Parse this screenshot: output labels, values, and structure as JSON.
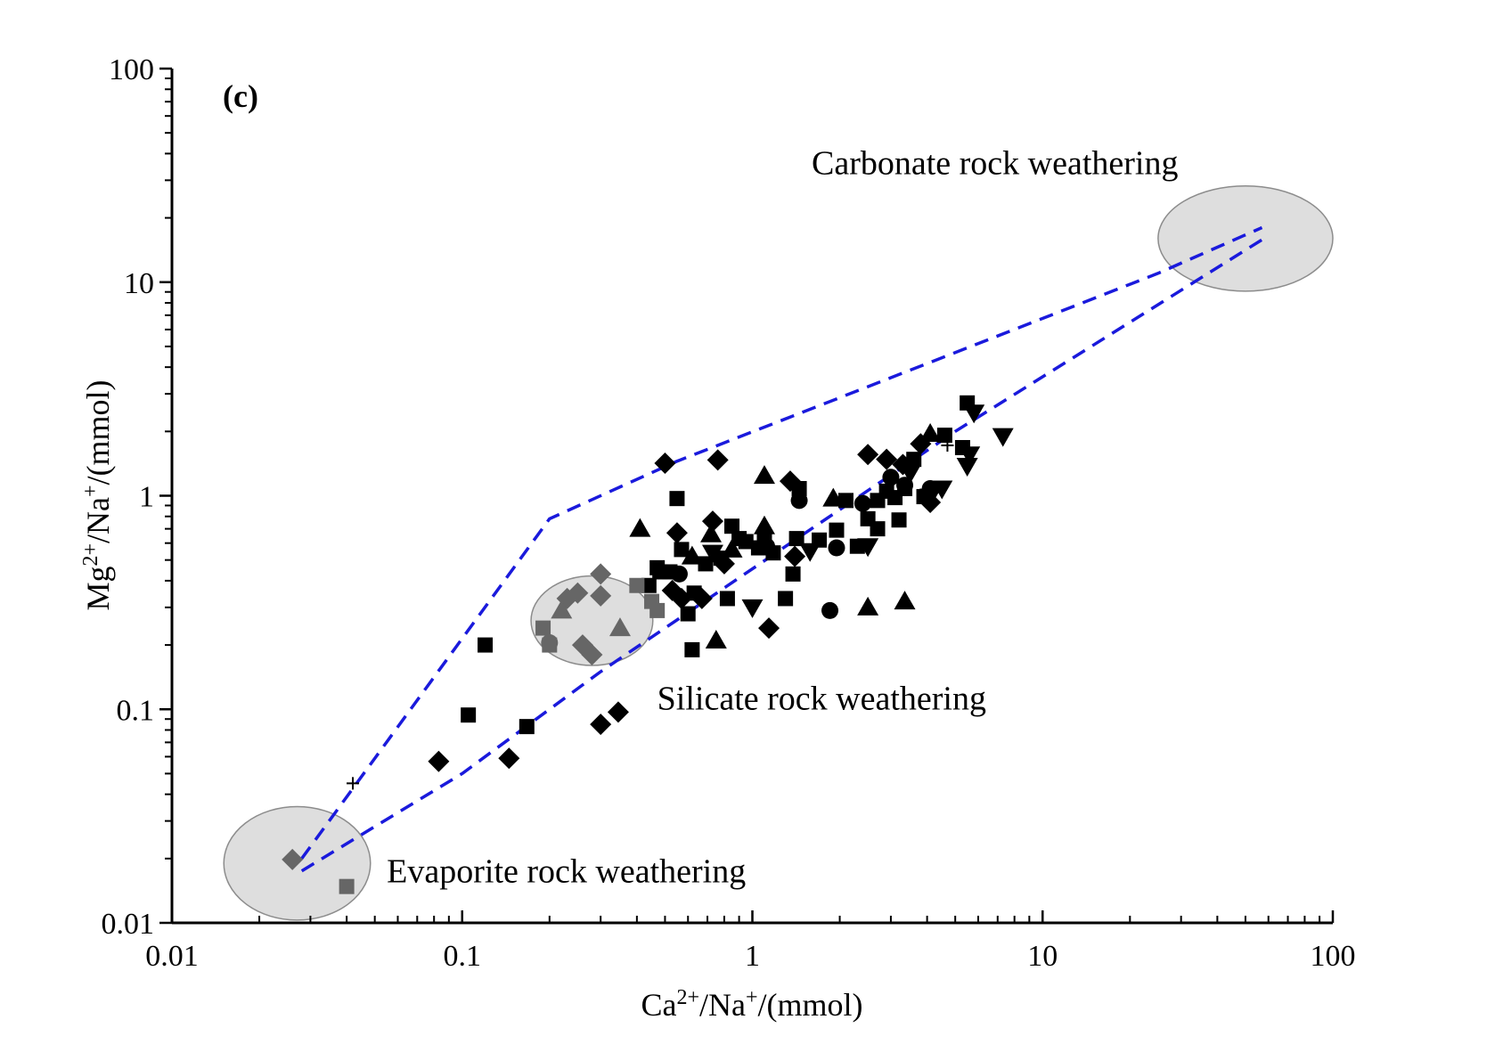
{
  "chart_data": {
    "type": "scatter",
    "panel_label": "(c)",
    "xlabel": {
      "base": "Ca",
      "sup1": "2+",
      "mid": "/Na",
      "sup2": "+",
      "tail": "/(mmol)"
    },
    "ylabel": {
      "base": "Mg",
      "sup1": "2+",
      "mid": "/Na",
      "sup2": "+",
      "tail": "/(mmol)"
    },
    "x_scale": "log",
    "y_scale": "log",
    "xlim": [
      0.01,
      100
    ],
    "ylim": [
      0.01,
      100
    ],
    "grid": false,
    "x_ticks": [
      {
        "value": 0.01,
        "label": "0.01"
      },
      {
        "value": 0.1,
        "label": "0.1"
      },
      {
        "value": 1,
        "label": "1"
      },
      {
        "value": 10,
        "label": "10"
      },
      {
        "value": 100,
        "label": "100"
      }
    ],
    "y_ticks": [
      {
        "value": 0.01,
        "label": "0.01"
      },
      {
        "value": 0.1,
        "label": "0.1"
      },
      {
        "value": 1,
        "label": "1"
      },
      {
        "value": 10,
        "label": "10"
      },
      {
        "value": 100,
        "label": "100"
      }
    ],
    "colors": {
      "points": "#000000",
      "endmember_points": "#666666",
      "boundary": "#1a1adc",
      "region_fill": "#dedede",
      "region_stroke": "#8c8c8c"
    },
    "regions": [
      {
        "label": "Carbonate rock weathering",
        "center": [
          50,
          16
        ],
        "x_range": [
          25,
          100
        ],
        "y_range": [
          9,
          28
        ],
        "label_at": [
          1.6,
          32
        ]
      },
      {
        "label": "Silicate rock weathering",
        "center": [
          0.28,
          0.26
        ],
        "x_range": [
          0.175,
          0.46
        ],
        "y_range": [
          0.16,
          0.42
        ],
        "label_at": [
          0.47,
          0.1
        ]
      },
      {
        "label": "Evaporite rock weathering",
        "center": [
          0.027,
          0.019
        ],
        "x_range": [
          0.015,
          0.048
        ],
        "y_range": [
          0.01,
          0.034
        ],
        "label_at": [
          0.055,
          0.0155
        ]
      }
    ],
    "boundary_lines": [
      {
        "points": [
          [
            0.028,
            0.02
          ],
          [
            0.2,
            0.78
          ],
          [
            0.55,
            1.45
          ],
          [
            25,
            11
          ],
          [
            57,
            18
          ]
        ]
      },
      {
        "points": [
          [
            0.028,
            0.0175
          ],
          [
            0.1,
            0.05
          ],
          [
            0.3,
            0.15
          ],
          [
            5,
            2
          ],
          [
            60,
            16.5
          ]
        ]
      }
    ],
    "series": [
      {
        "marker": "square",
        "points": [
          [
            0.12,
            0.2
          ],
          [
            0.105,
            0.094
          ],
          [
            0.167,
            0.083
          ],
          [
            0.55,
            0.97
          ],
          [
            0.44,
            0.38
          ],
          [
            0.48,
            0.44
          ],
          [
            0.47,
            0.46
          ],
          [
            0.52,
            0.44
          ],
          [
            0.57,
            0.56
          ],
          [
            0.6,
            0.28
          ],
          [
            0.62,
            0.19
          ],
          [
            0.63,
            0.35
          ],
          [
            0.69,
            0.48
          ],
          [
            0.78,
            0.51
          ],
          [
            0.82,
            0.33
          ],
          [
            0.85,
            0.72
          ],
          [
            0.9,
            0.63
          ],
          [
            0.95,
            0.61
          ],
          [
            1.05,
            0.57
          ],
          [
            1.1,
            0.62
          ],
          [
            1.18,
            0.54
          ],
          [
            1.3,
            0.33
          ],
          [
            1.38,
            0.43
          ],
          [
            1.42,
            0.63
          ],
          [
            1.45,
            1.08
          ],
          [
            1.7,
            0.62
          ],
          [
            1.95,
            0.69
          ],
          [
            2.1,
            0.95
          ],
          [
            2.3,
            0.58
          ],
          [
            2.5,
            0.78
          ],
          [
            2.7,
            0.95
          ],
          [
            2.7,
            0.7
          ],
          [
            2.9,
            1.05
          ],
          [
            3.1,
            0.98
          ],
          [
            3.2,
            0.77
          ],
          [
            3.35,
            1.08
          ],
          [
            3.6,
            1.48
          ],
          [
            3.9,
            0.99
          ],
          [
            4.6,
            1.92
          ],
          [
            5.5,
            2.72
          ],
          [
            5.3,
            1.68
          ]
        ]
      },
      {
        "marker": "circle",
        "points": [
          [
            0.56,
            0.43
          ],
          [
            1.12,
            0.58
          ],
          [
            1.45,
            0.95
          ],
          [
            1.85,
            0.29
          ],
          [
            1.95,
            0.57
          ],
          [
            2.4,
            0.92
          ],
          [
            3.0,
            1.22
          ],
          [
            3.35,
            1.12
          ],
          [
            4.1,
            1.08
          ]
        ]
      },
      {
        "marker": "triangle-up",
        "points": [
          [
            0.41,
            0.7
          ],
          [
            0.62,
            0.52
          ],
          [
            0.72,
            0.66
          ],
          [
            0.75,
            0.21
          ],
          [
            0.85,
            0.56
          ],
          [
            1.1,
            1.24
          ],
          [
            1.1,
            0.72
          ],
          [
            1.9,
            0.97
          ],
          [
            2.5,
            0.3
          ],
          [
            3.35,
            0.32
          ],
          [
            4.1,
            1.95
          ]
        ]
      },
      {
        "marker": "triangle-down",
        "points": [
          [
            0.73,
            0.54
          ],
          [
            1.0,
            0.3
          ],
          [
            1.58,
            0.55
          ],
          [
            2.5,
            0.58
          ],
          [
            3.5,
            1.28
          ],
          [
            4.1,
            0.99
          ],
          [
            4.5,
            1.08
          ],
          [
            5.5,
            1.38
          ],
          [
            5.8,
            2.45
          ],
          [
            5.6,
            1.56
          ],
          [
            7.3,
            1.9
          ]
        ]
      },
      {
        "marker": "diamond",
        "points": [
          [
            0.083,
            0.057
          ],
          [
            0.145,
            0.059
          ],
          [
            0.3,
            0.085
          ],
          [
            0.345,
            0.097
          ],
          [
            0.5,
            1.42
          ],
          [
            0.55,
            0.67
          ],
          [
            0.53,
            0.36
          ],
          [
            0.57,
            0.33
          ],
          [
            0.67,
            0.33
          ],
          [
            0.73,
            0.76
          ],
          [
            0.76,
            1.47
          ],
          [
            0.8,
            0.48
          ],
          [
            1.14,
            0.24
          ],
          [
            1.35,
            1.17
          ],
          [
            1.4,
            0.52
          ],
          [
            2.5,
            1.56
          ],
          [
            2.9,
            1.48
          ],
          [
            3.3,
            1.4
          ],
          [
            3.8,
            1.75
          ],
          [
            4.1,
            0.93
          ]
        ]
      },
      {
        "marker": "plus",
        "points": [
          [
            0.042,
            0.045
          ],
          [
            4.7,
            1.72
          ]
        ]
      },
      {
        "marker": "diamond",
        "shade": "gray",
        "points": [
          [
            0.026,
            0.0198
          ],
          [
            0.23,
            0.33
          ],
          [
            0.25,
            0.35
          ],
          [
            0.3,
            0.43
          ],
          [
            0.3,
            0.34
          ],
          [
            0.26,
            0.2
          ],
          [
            0.28,
            0.18
          ]
        ]
      },
      {
        "marker": "square",
        "shade": "gray",
        "points": [
          [
            0.04,
            0.0148
          ],
          [
            0.19,
            0.24
          ],
          [
            0.2,
            0.2
          ],
          [
            0.4,
            0.38
          ],
          [
            0.45,
            0.32
          ],
          [
            0.47,
            0.29
          ]
        ]
      },
      {
        "marker": "triangle-up",
        "shade": "gray",
        "points": [
          [
            0.22,
            0.29
          ],
          [
            0.35,
            0.24
          ]
        ]
      },
      {
        "marker": "circle",
        "shade": "gray",
        "points": [
          [
            0.2,
            0.205
          ]
        ]
      }
    ]
  }
}
